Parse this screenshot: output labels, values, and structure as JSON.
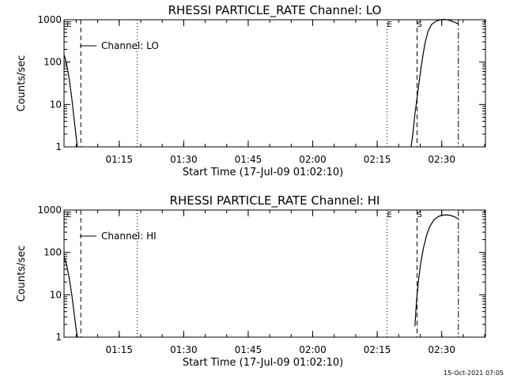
{
  "stamp": "15-Oct-2021 07:05",
  "chart_data": [
    {
      "type": "line",
      "title": "RHESSI PARTICLE_RATE Channel: LO",
      "xlabel": "Start Time (17-Jul-09 01:02:10)",
      "ylabel": "Counts/sec",
      "yscale": "log",
      "ylim": [
        1,
        1000
      ],
      "xlim_minutes": [
        0,
        98
      ],
      "x_ticks": [
        {
          "label": "01:15",
          "m": 12.83
        },
        {
          "label": "01:30",
          "m": 27.83
        },
        {
          "label": "01:45",
          "m": 42.83
        },
        {
          "label": "02:00",
          "m": 57.83
        },
        {
          "label": "02:15",
          "m": 72.83
        },
        {
          "label": "02:30",
          "m": 87.83
        }
      ],
      "y_ticks": [
        {
          "label": "1",
          "v": 1
        },
        {
          "label": "10",
          "v": 10
        },
        {
          "label": "100",
          "v": 100
        },
        {
          "label": "1000",
          "v": 1000
        }
      ],
      "legend": "Channel: LO",
      "markers": [
        {
          "label": "E",
          "m": 0.6,
          "style": "dashed",
          "line": 3.9
        },
        {
          "label": "",
          "m": 17.0,
          "style": "dotted"
        },
        {
          "label": "E",
          "m": 75.1,
          "style": "dotted"
        },
        {
          "label": "S",
          "m": 82.1,
          "style": "dashed"
        },
        {
          "label": "",
          "m": 91.7,
          "style": "dashdot"
        }
      ],
      "series": [
        {
          "segments": [
            [
              [
                0.0,
                150
              ],
              [
                0.6,
                90
              ],
              [
                1.2,
                40
              ],
              [
                1.8,
                14
              ],
              [
                2.3,
                5
              ],
              [
                2.8,
                1.8
              ],
              [
                3.1,
                1
              ]
            ],
            [
              [
                80.7,
                1
              ],
              [
                81.0,
                1.6
              ],
              [
                81.3,
                3
              ],
              [
                81.6,
                6
              ],
              [
                82.0,
                12
              ],
              [
                82.5,
                30
              ],
              [
                83.0,
                70
              ],
              [
                83.5,
                150
              ],
              [
                84.0,
                300
              ],
              [
                84.7,
                550
              ],
              [
                85.5,
                780
              ],
              [
                86.5,
                920
              ],
              [
                87.5,
                1000
              ],
              [
                88.5,
                1020
              ],
              [
                89.5,
                980
              ],
              [
                90.5,
                900
              ],
              [
                91.2,
                840
              ],
              [
                91.7,
                800
              ]
            ]
          ]
        }
      ]
    },
    {
      "type": "line",
      "title": "RHESSI PARTICLE_RATE Channel: HI",
      "xlabel": "Start Time (17-Jul-09 01:02:10)",
      "ylabel": "Counts/sec",
      "yscale": "log",
      "ylim": [
        1,
        1000
      ],
      "xlim_minutes": [
        0,
        98
      ],
      "x_ticks": [
        {
          "label": "01:15",
          "m": 12.83
        },
        {
          "label": "01:30",
          "m": 27.83
        },
        {
          "label": "01:45",
          "m": 42.83
        },
        {
          "label": "02:00",
          "m": 57.83
        },
        {
          "label": "02:15",
          "m": 72.83
        },
        {
          "label": "02:30",
          "m": 87.83
        }
      ],
      "y_ticks": [
        {
          "label": "1",
          "v": 1
        },
        {
          "label": "10",
          "v": 10
        },
        {
          "label": "100",
          "v": 100
        },
        {
          "label": "1000",
          "v": 1000
        }
      ],
      "legend": "Channel: HI",
      "markers": [
        {
          "label": "E",
          "m": 0.6,
          "style": "dashed",
          "line": 3.9
        },
        {
          "label": "",
          "m": 17.0,
          "style": "dotted"
        },
        {
          "label": "E",
          "m": 75.1,
          "style": "dotted"
        },
        {
          "label": "S",
          "m": 82.1,
          "style": "dashed"
        },
        {
          "label": "",
          "m": 91.7,
          "style": "dashdot"
        }
      ],
      "series": [
        {
          "segments": [
            [
              [
                0.0,
                80
              ],
              [
                0.6,
                50
              ],
              [
                1.2,
                25
              ],
              [
                1.8,
                10
              ],
              [
                2.3,
                4
              ],
              [
                2.8,
                1.6
              ],
              [
                3.1,
                1
              ]
            ],
            [
              [
                81.6,
                1.8
              ],
              [
                81.8,
                4
              ],
              [
                82.1,
                10
              ],
              [
                82.5,
                25
              ],
              [
                83.0,
                60
              ],
              [
                83.6,
                130
              ],
              [
                84.3,
                250
              ],
              [
                85.0,
                400
              ],
              [
                86.0,
                580
              ],
              [
                87.0,
                700
              ],
              [
                88.0,
                760
              ],
              [
                89.0,
                770
              ],
              [
                90.0,
                740
              ],
              [
                91.0,
                680
              ],
              [
                91.7,
                620
              ]
            ]
          ]
        }
      ]
    }
  ]
}
